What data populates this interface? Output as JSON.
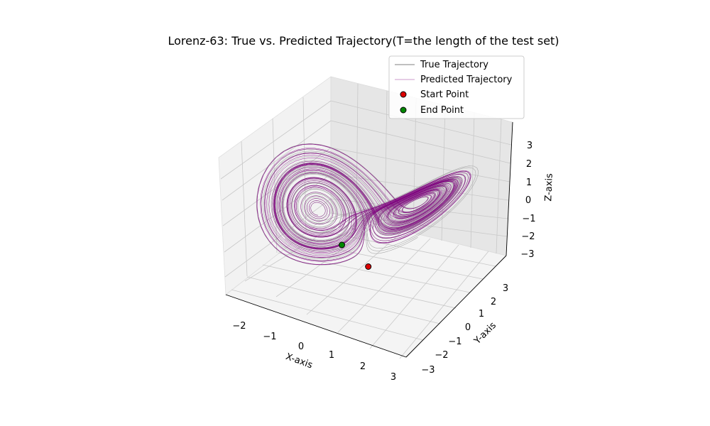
{
  "chart_data": {
    "type": "line",
    "projection": "3d",
    "title": "Lorenz-63: True vs. Predicted Trajectory(T=the length of the test set)",
    "xlabel": "X-axis",
    "ylabel": "Y-axis",
    "zlabel": "Z-axis",
    "xlim": [
      -2.5,
      3
    ],
    "ylim": [
      -3,
      3.5
    ],
    "zlim": [
      -3,
      3.5
    ],
    "xticks": [
      "−2",
      "−1",
      "0",
      "1",
      "2",
      "3"
    ],
    "yticks": [
      "−3",
      "−2",
      "−1",
      "0",
      "1",
      "2",
      "3"
    ],
    "zticks": [
      "−3",
      "−2",
      "−1",
      "0",
      "1",
      "2",
      "3"
    ],
    "grid": true,
    "legend_position": "top-right",
    "series": [
      {
        "name": "True Trajectory",
        "color": "#aaaaaa",
        "kind": "line"
      },
      {
        "name": "Predicted Trajectory",
        "color": "#800080",
        "kind": "line"
      },
      {
        "name": "Start Point",
        "color": "#dd0000",
        "kind": "marker",
        "x": 0.9,
        "y": -1.1,
        "z": -1.2
      },
      {
        "name": "End Point",
        "color": "#008800",
        "kind": "marker",
        "x": -0.1,
        "y": -0.7,
        "z": -1.0
      }
    ]
  }
}
